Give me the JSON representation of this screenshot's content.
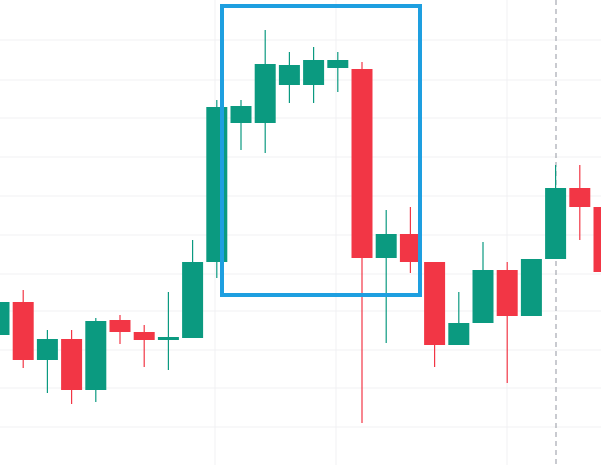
{
  "chart_data": {
    "type": "candlestick",
    "open": [
      130,
      163,
      105,
      126,
      75,
      145,
      133,
      125,
      127,
      203,
      342,
      342,
      380,
      380,
      397,
      396,
      207,
      231,
      203,
      120,
      142,
      195,
      149,
      206,
      277,
      258
    ],
    "close": [
      163,
      105,
      126,
      75,
      144,
      133,
      125,
      128,
      203,
      358,
      359,
      401,
      400,
      405,
      405,
      207,
      231,
      203,
      120,
      142,
      195,
      149,
      206,
      277,
      258,
      193
    ],
    "high": [
      175,
      175,
      135,
      135,
      147,
      150,
      140,
      173,
      225,
      365,
      365,
      435,
      413,
      418,
      413,
      403,
      255,
      258,
      203,
      173,
      223,
      203,
      206,
      300,
      300,
      265
    ],
    "low": [
      125,
      97,
      72,
      61,
      63,
      121,
      98,
      95,
      127,
      187,
      315,
      312,
      362,
      362,
      373,
      42,
      122,
      192,
      98,
      120,
      142,
      82,
      149,
      206,
      225,
      193
    ],
    "up_color": "#0b9a80",
    "down_color": "#f23645",
    "ylim": [
      0,
      465
    ]
  }
}
